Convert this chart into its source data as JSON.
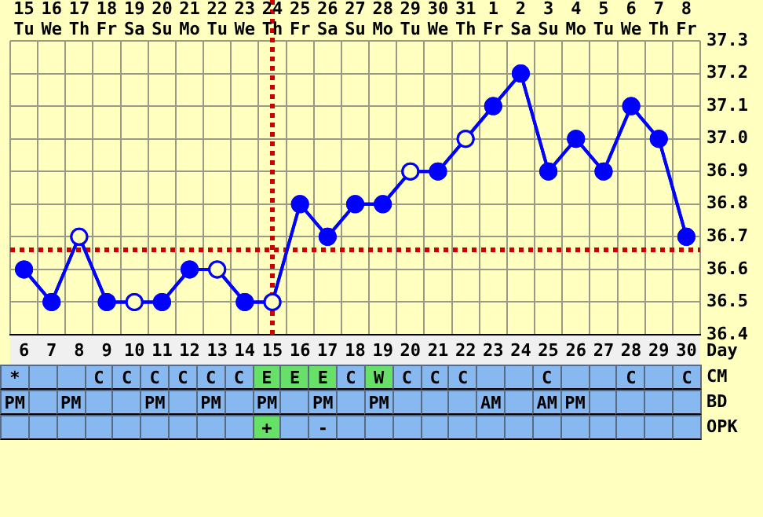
{
  "chart_data": [
    {
      "type": "line",
      "xlabel": "Day",
      "categories": [
        "6",
        "7",
        "8",
        "9",
        "10",
        "11",
        "12",
        "13",
        "14",
        "15",
        "16",
        "17",
        "18",
        "19",
        "20",
        "21",
        "22",
        "23",
        "24",
        "25",
        "26",
        "27",
        "28",
        "29",
        "30"
      ],
      "annotations": [
        "15",
        "16",
        "17",
        "18",
        "19",
        "20",
        "21",
        "22",
        "23",
        "24",
        "25",
        "26",
        "27",
        "28",
        "29",
        "30",
        "31",
        "1",
        "2",
        "3",
        "4",
        "5",
        "6",
        "7",
        "8",
        "Tu",
        "We",
        "Th",
        "Fr",
        "Sa",
        "Su",
        "Mo",
        "Tu",
        "We",
        "Th",
        "Fr",
        "Sa",
        "Su",
        "Mo",
        "Tu",
        "We",
        "Th",
        "Fr",
        "Sa",
        "Su",
        "Mo",
        "Tu",
        "We",
        "Th",
        "Fr"
      ],
      "series": [
        {
          "color": "#0000ff",
          "values": [
            36.6,
            36.5,
            36.7,
            36.5,
            36.5,
            36.5,
            36.6,
            36.6,
            36.5,
            36.5,
            36.8,
            36.7,
            36.8,
            36.8,
            36.9,
            36.9,
            37.0,
            37.1,
            37.2,
            36.9,
            37.0,
            36.9,
            37.1,
            37.0,
            36.7
          ],
          "colors": [
            "#0000ff",
            "#0000ff",
            "#ffffc0",
            "#0000ff",
            "#ffffc0",
            "#0000ff",
            "#0000ff",
            "#ffffc0",
            "#0000ff",
            "#ffffc0",
            "#0000ff",
            "#0000ff",
            "#0000ff",
            "#0000ff",
            "#ffffc0",
            "#0000ff",
            "#ffffc0",
            "#0000ff",
            "#0000ff",
            "#0000ff",
            "#0000ff",
            "#0000ff",
            "#0000ff",
            "#0000ff",
            "#0000ff"
          ]
        }
      ],
      "ylim": [
        36.4,
        37.3
      ],
      "yticks": [
        36.4,
        36.5,
        36.6,
        36.7,
        36.8,
        36.9,
        {
          "value": 37,
          "label": "37.0"
        },
        37.1,
        37.2,
        37.3
      ],
      "ref_lines": [
        {
          "axis": "y",
          "value": 36.66,
          "color": "#cc0000",
          "line_style": "dotted"
        },
        {
          "axis": "x",
          "value": "15",
          "color": "#cc0000",
          "line_style": "dotted"
        }
      ],
      "grid": true,
      "legend": false,
      "marker": "circle",
      "line_style": "solid"
    },
    {
      "type": "other",
      "y_categories": [
        "CM",
        "BD",
        "OPK"
      ],
      "cell_labels": [
        [
          "*",
          null,
          null,
          "C",
          "C",
          "C",
          "C",
          "C",
          "C",
          "E",
          "E",
          "E",
          "C",
          "W",
          "C",
          "C",
          "C",
          null,
          null,
          "C",
          null,
          null,
          "C",
          null,
          "C"
        ],
        [
          "PM",
          null,
          "PM",
          null,
          null,
          "PM",
          null,
          "PM",
          null,
          "PM",
          null,
          "PM",
          null,
          "PM",
          null,
          null,
          null,
          "AM",
          null,
          "AM",
          "PM",
          null,
          null,
          null,
          null
        ],
        [
          null,
          null,
          null,
          null,
          null,
          null,
          null,
          null,
          null,
          "+",
          null,
          "-",
          null,
          null,
          null,
          null,
          null,
          null,
          null,
          null,
          null,
          null,
          null,
          null,
          null
        ]
      ],
      "colors": [
        [
          "#88b8f0",
          "#88b8f0",
          "#88b8f0",
          "#88b8f0",
          "#88b8f0",
          "#88b8f0",
          "#88b8f0",
          "#88b8f0",
          "#88b8f0",
          "#66e066",
          "#66e066",
          "#66e066",
          "#88b8f0",
          "#66e066",
          "#88b8f0",
          "#88b8f0",
          "#88b8f0",
          "#88b8f0",
          "#88b8f0",
          "#88b8f0",
          "#88b8f0",
          "#88b8f0",
          "#88b8f0",
          "#88b8f0",
          "#88b8f0"
        ],
        [
          "#88b8f0",
          "#88b8f0",
          "#88b8f0",
          "#88b8f0",
          "#88b8f0",
          "#88b8f0",
          "#88b8f0",
          "#88b8f0",
          "#88b8f0",
          "#88b8f0",
          "#88b8f0",
          "#88b8f0",
          "#88b8f0",
          "#88b8f0",
          "#88b8f0",
          "#88b8f0",
          "#88b8f0",
          "#88b8f0",
          "#88b8f0",
          "#88b8f0",
          "#88b8f0",
          "#88b8f0",
          "#88b8f0",
          "#88b8f0",
          "#88b8f0"
        ],
        [
          "#88b8f0",
          "#88b8f0",
          "#88b8f0",
          "#88b8f0",
          "#88b8f0",
          "#88b8f0",
          "#88b8f0",
          "#88b8f0",
          "#88b8f0",
          "#66e066",
          "#88b8f0",
          "#88b8f0",
          "#88b8f0",
          "#88b8f0",
          "#88b8f0",
          "#88b8f0",
          "#88b8f0",
          "#88b8f0",
          "#88b8f0",
          "#88b8f0",
          "#88b8f0",
          "#88b8f0",
          "#88b8f0",
          "#88b8f0",
          "#88b8f0"
        ]
      ]
    }
  ]
}
